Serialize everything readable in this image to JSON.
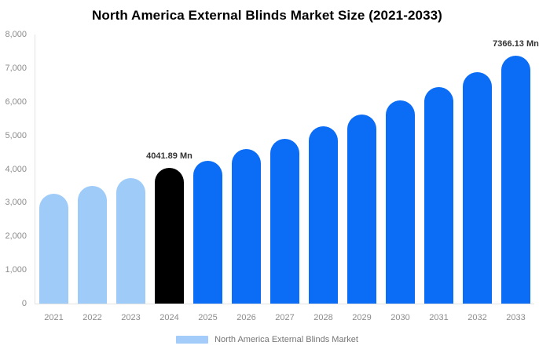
{
  "chart_data": {
    "type": "bar",
    "title": "North America External Blinds Market Size (2021-2033)",
    "unit": "Mn",
    "categories": [
      "2021",
      "2022",
      "2023",
      "2024",
      "2025",
      "2026",
      "2027",
      "2028",
      "2029",
      "2030",
      "2031",
      "2032",
      "2033"
    ],
    "values": [
      3260,
      3490,
      3730,
      4041.89,
      4250,
      4600,
      4910,
      5270,
      5620,
      6040,
      6450,
      6890,
      7366.13
    ],
    "point_labels": [
      "",
      "",
      "",
      "4041.89 Mn",
      "",
      "",
      "",
      "",
      "",
      "",
      "",
      "",
      "7366.13 Mn"
    ],
    "bar_colors": [
      "#9FCBF8",
      "#9FCBF8",
      "#9FCBF8",
      "#000000",
      "#0B6CF6",
      "#0B6CF6",
      "#0B6CF6",
      "#0B6CF6",
      "#0B6CF6",
      "#0B6CF6",
      "#0B6CF6",
      "#0B6CF6",
      "#0B6CF6"
    ],
    "ylim": [
      0,
      8000
    ],
    "ytick_labels": [
      "8,000",
      "7,000",
      "6,000",
      "5,000",
      "4,000",
      "3,000",
      "2,000",
      "1,000",
      "0"
    ],
    "grid": false,
    "xlabel": "",
    "ylabel": "",
    "legend": {
      "label": "North America External Blinds Market",
      "swatch_color": "#A3CCFA",
      "position": "bottom"
    },
    "colors": {
      "axis_line": "#E3E3E3",
      "tick_text": "#8C8C8C",
      "data_label": "#333333",
      "title_text": "#000000",
      "legend_text": "#757575",
      "background": "#FFFFFF"
    }
  }
}
